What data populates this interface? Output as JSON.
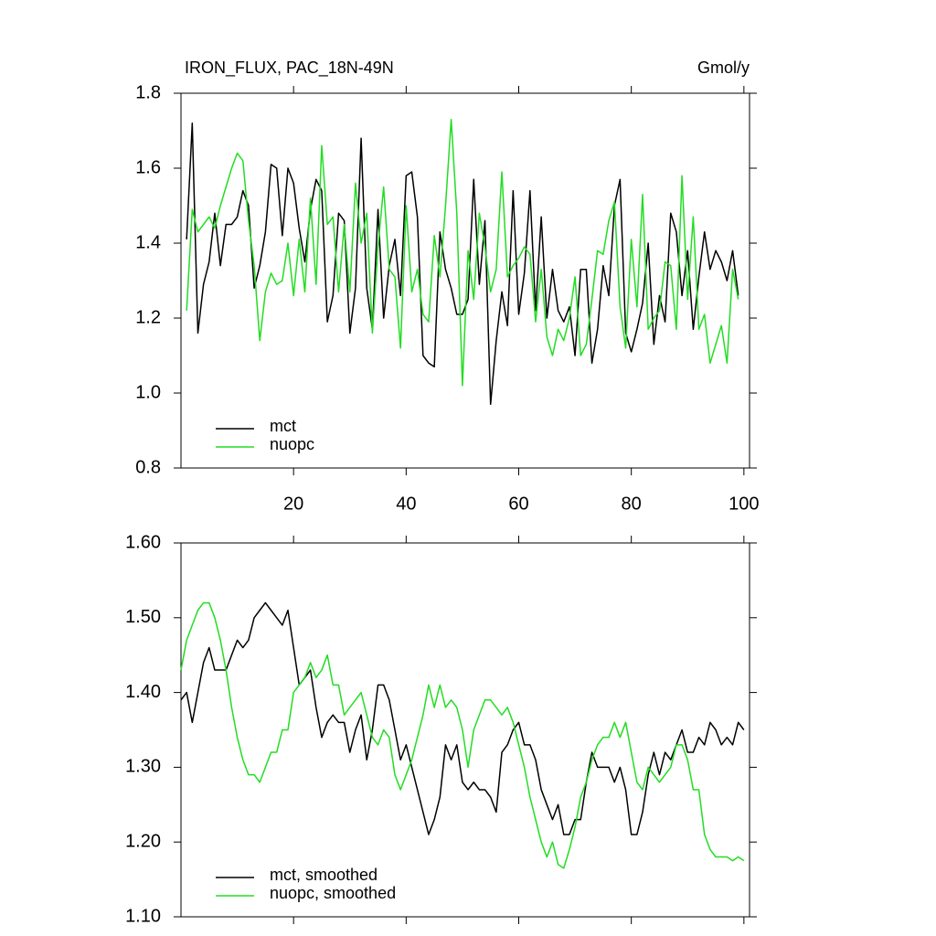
{
  "chart_data": [
    {
      "type": "line",
      "title": "IRON_FLUX, PAC_18N-49N",
      "units": "Gmol/y",
      "x": [
        1,
        2,
        3,
        4,
        5,
        6,
        7,
        8,
        9,
        10,
        11,
        12,
        13,
        14,
        15,
        16,
        17,
        18,
        19,
        20,
        21,
        22,
        23,
        24,
        25,
        26,
        27,
        28,
        29,
        30,
        31,
        32,
        33,
        34,
        35,
        36,
        37,
        38,
        39,
        40,
        41,
        42,
        43,
        44,
        45,
        46,
        47,
        48,
        49,
        50,
        51,
        52,
        53,
        54,
        55,
        56,
        57,
        58,
        59,
        60,
        61,
        62,
        63,
        64,
        65,
        66,
        67,
        68,
        69,
        70,
        71,
        72,
        73,
        74,
        75,
        76,
        77,
        78,
        79,
        80,
        81,
        82,
        83,
        84,
        85,
        86,
        87,
        88,
        89,
        90,
        91,
        92,
        93,
        94,
        95,
        96,
        97,
        98,
        99
      ],
      "series": [
        {
          "name": "mct",
          "color": "#000000",
          "values": [
            1.41,
            1.72,
            1.16,
            1.29,
            1.35,
            1.48,
            1.34,
            1.45,
            1.45,
            1.47,
            1.54,
            1.5,
            1.28,
            1.34,
            1.43,
            1.61,
            1.6,
            1.42,
            1.6,
            1.56,
            1.44,
            1.35,
            1.49,
            1.57,
            1.54,
            1.19,
            1.26,
            1.48,
            1.46,
            1.16,
            1.28,
            1.68,
            1.28,
            1.17,
            1.49,
            1.2,
            1.34,
            1.41,
            1.26,
            1.58,
            1.59,
            1.47,
            1.1,
            1.08,
            1.07,
            1.43,
            1.33,
            1.28,
            1.21,
            1.21,
            1.25,
            1.57,
            1.29,
            1.46,
            0.97,
            1.14,
            1.27,
            1.18,
            1.54,
            1.21,
            1.32,
            1.54,
            1.22,
            1.47,
            1.2,
            1.33,
            1.22,
            1.19,
            1.23,
            1.1,
            1.33,
            1.33,
            1.08,
            1.17,
            1.34,
            1.26,
            1.5,
            1.57,
            1.16,
            1.11,
            1.17,
            1.24,
            1.4,
            1.13,
            1.26,
            1.19,
            1.48,
            1.43,
            1.26,
            1.38,
            1.17,
            1.31,
            1.43,
            1.33,
            1.38,
            1.35,
            1.3,
            1.38,
            1.26
          ]
        },
        {
          "name": "nuopc",
          "color": "#22dd22",
          "values": [
            1.22,
            1.49,
            1.43,
            1.45,
            1.47,
            1.44,
            1.5,
            1.55,
            1.6,
            1.64,
            1.62,
            1.46,
            1.34,
            1.14,
            1.27,
            1.32,
            1.29,
            1.3,
            1.4,
            1.26,
            1.41,
            1.27,
            1.52,
            1.29,
            1.66,
            1.45,
            1.47,
            1.27,
            1.45,
            1.27,
            1.56,
            1.4,
            1.48,
            1.16,
            1.39,
            1.55,
            1.33,
            1.31,
            1.12,
            1.5,
            1.27,
            1.33,
            1.21,
            1.19,
            1.42,
            1.31,
            1.5,
            1.73,
            1.48,
            1.02,
            1.38,
            1.25,
            1.48,
            1.39,
            1.27,
            1.33,
            1.59,
            1.31,
            1.34,
            1.36,
            1.39,
            1.37,
            1.19,
            1.33,
            1.15,
            1.1,
            1.17,
            1.14,
            1.2,
            1.31,
            1.1,
            1.13,
            1.25,
            1.38,
            1.37,
            1.46,
            1.51,
            1.23,
            1.12,
            1.41,
            1.23,
            1.53,
            1.17,
            1.2,
            1.22,
            1.35,
            1.34,
            1.17,
            1.58,
            1.25,
            1.47,
            1.17,
            1.21,
            1.08,
            1.13,
            1.18,
            1.08,
            1.33,
            1.25
          ]
        }
      ],
      "xlim": [
        0,
        101
      ],
      "xticks": [
        20,
        40,
        60,
        80,
        100
      ],
      "x_tick_labels": true,
      "ylim": [
        0.8,
        1.8
      ],
      "yticks": [
        0.8,
        {
          "value": 1.0,
          "label": "1.0"
        },
        1.2,
        1.4,
        1.6,
        1.8
      ]
    },
    {
      "type": "line",
      "x": [
        0,
        1,
        2,
        3,
        4,
        5,
        6,
        7,
        8,
        9,
        10,
        11,
        12,
        13,
        14,
        15,
        16,
        17,
        18,
        19,
        20,
        21,
        22,
        23,
        24,
        25,
        26,
        27,
        28,
        29,
        30,
        31,
        32,
        33,
        34,
        35,
        36,
        37,
        38,
        39,
        40,
        41,
        42,
        43,
        44,
        45,
        46,
        47,
        48,
        49,
        50,
        51,
        52,
        53,
        54,
        55,
        56,
        57,
        58,
        59,
        60,
        61,
        62,
        63,
        64,
        65,
        66,
        67,
        68,
        69,
        70,
        71,
        72,
        73,
        74,
        75,
        76,
        77,
        78,
        79,
        80,
        81,
        82,
        83,
        84,
        85,
        86,
        87,
        88,
        89,
        90,
        91,
        92,
        93,
        94,
        95,
        96,
        97,
        98,
        99,
        100
      ],
      "series": [
        {
          "name": "mct, smoothed",
          "color": "#000000",
          "values": [
            1.39,
            1.4,
            1.36,
            1.4,
            1.44,
            1.46,
            1.43,
            1.43,
            1.43,
            1.45,
            1.47,
            1.46,
            1.47,
            1.5,
            1.51,
            1.52,
            1.51,
            1.5,
            1.49,
            1.51,
            1.46,
            1.41,
            1.42,
            1.43,
            1.38,
            1.34,
            1.36,
            1.37,
            1.36,
            1.36,
            1.32,
            1.35,
            1.37,
            1.31,
            1.35,
            1.41,
            1.41,
            1.39,
            1.35,
            1.31,
            1.33,
            1.3,
            1.27,
            1.24,
            1.21,
            1.23,
            1.26,
            1.33,
            1.31,
            1.33,
            1.28,
            1.27,
            1.28,
            1.27,
            1.27,
            1.26,
            1.24,
            1.32,
            1.33,
            1.35,
            1.36,
            1.33,
            1.33,
            1.31,
            1.27,
            1.25,
            1.23,
            1.25,
            1.21,
            1.21,
            1.23,
            1.23,
            1.28,
            1.32,
            1.3,
            1.3,
            1.3,
            1.28,
            1.3,
            1.27,
            1.21,
            1.21,
            1.24,
            1.29,
            1.32,
            1.29,
            1.32,
            1.31,
            1.33,
            1.35,
            1.32,
            1.32,
            1.34,
            1.33,
            1.36,
            1.35,
            1.33,
            1.34,
            1.33,
            1.36,
            1.35
          ]
        },
        {
          "name": "nuopc, smoothed",
          "color": "#22dd22",
          "values": [
            1.43,
            1.47,
            1.49,
            1.51,
            1.52,
            1.52,
            1.5,
            1.47,
            1.43,
            1.38,
            1.34,
            1.31,
            1.29,
            1.29,
            1.28,
            1.3,
            1.32,
            1.32,
            1.35,
            1.35,
            1.4,
            1.41,
            1.42,
            1.44,
            1.42,
            1.43,
            1.45,
            1.41,
            1.41,
            1.37,
            1.38,
            1.39,
            1.4,
            1.37,
            1.34,
            1.33,
            1.35,
            1.34,
            1.29,
            1.27,
            1.29,
            1.31,
            1.34,
            1.37,
            1.41,
            1.38,
            1.41,
            1.38,
            1.39,
            1.38,
            1.35,
            1.3,
            1.35,
            1.37,
            1.39,
            1.39,
            1.38,
            1.37,
            1.38,
            1.36,
            1.33,
            1.3,
            1.26,
            1.23,
            1.2,
            1.18,
            1.2,
            1.17,
            1.165,
            1.19,
            1.22,
            1.26,
            1.28,
            1.31,
            1.33,
            1.34,
            1.34,
            1.36,
            1.34,
            1.36,
            1.32,
            1.28,
            1.27,
            1.3,
            1.29,
            1.28,
            1.29,
            1.3,
            1.33,
            1.33,
            1.31,
            1.27,
            1.27,
            1.21,
            1.19,
            1.18,
            1.18,
            1.18,
            1.175,
            1.18,
            1.175
          ]
        }
      ],
      "xlim": [
        0,
        101
      ],
      "xticks": [
        20,
        40,
        60,
        80,
        100
      ],
      "x_tick_labels": false,
      "ylim": [
        1.1,
        1.6
      ],
      "yticks": [
        {
          "value": 1.1,
          "label": "1.10"
        },
        {
          "value": 1.2,
          "label": "1.20"
        },
        {
          "value": 1.3,
          "label": "1.30"
        },
        {
          "value": 1.4,
          "label": "1.40"
        },
        {
          "value": 1.5,
          "label": "1.50"
        },
        {
          "value": 1.6,
          "label": "1.60"
        }
      ]
    }
  ]
}
